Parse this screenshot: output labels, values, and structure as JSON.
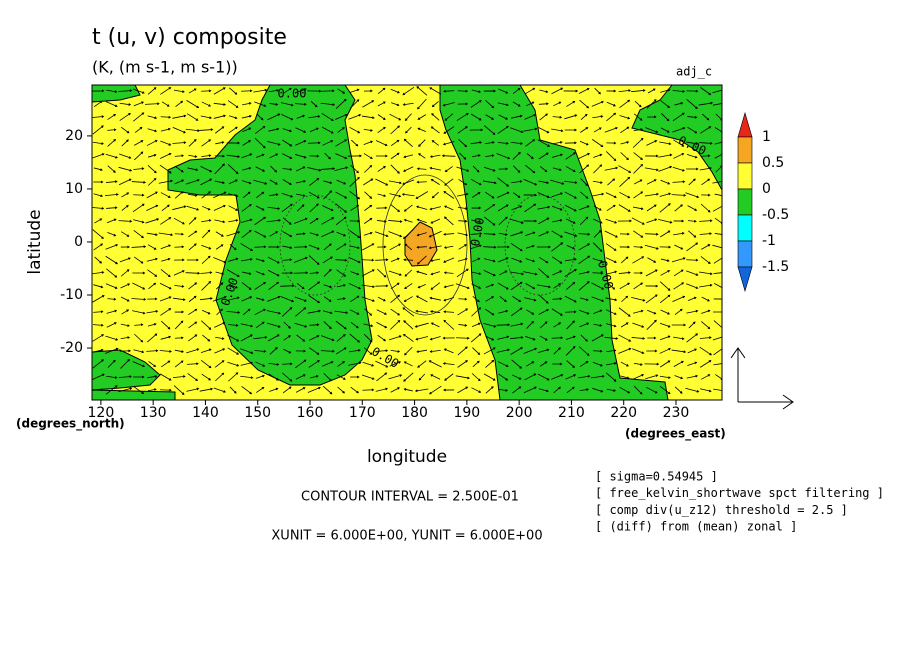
{
  "chart_data": {
    "type": "contour",
    "title": "t (u, v) composite",
    "subtitle": "(K, (m s-1, m s-1))",
    "label": "adj_c",
    "xlabel": "longitude",
    "ylabel": "latitude",
    "x_unit_label": "(degrees_east)",
    "y_unit_label": "(degrees_north)",
    "xlim": [
      118.3,
      238.8
    ],
    "ylim": [
      -29.8,
      29.6
    ],
    "xticks": [
      120,
      130,
      140,
      150,
      160,
      170,
      180,
      190,
      200,
      210,
      220,
      230
    ],
    "yticks": [
      -20,
      -10,
      0,
      10,
      20
    ],
    "contour_labels": [
      "0.00",
      "0.00",
      "0.00",
      "0.00",
      "0.00",
      "0.00"
    ],
    "colorbar": {
      "levels": [
        1,
        0.5,
        0,
        -0.5,
        -1,
        -1.5
      ],
      "colors": [
        "#e8261a",
        "#f5a623",
        "#ffff33",
        "#22cc22",
        "#00ffff",
        "#3399ff",
        "#1166dd"
      ]
    }
  },
  "footer": {
    "contour_interval": "CONTOUR INTERVAL = 2.500E-01",
    "units": "XUNIT = 6.000E+00, YUNIT = 6.000E+00",
    "notes": [
      "[ sigma=0.54945 ]",
      "[ free_kelvin_shortwave spct filtering ]",
      "[ comp div(u_z12) threshold = 2.5 ]",
      "[ (diff) from (mean) zonal ]"
    ]
  }
}
